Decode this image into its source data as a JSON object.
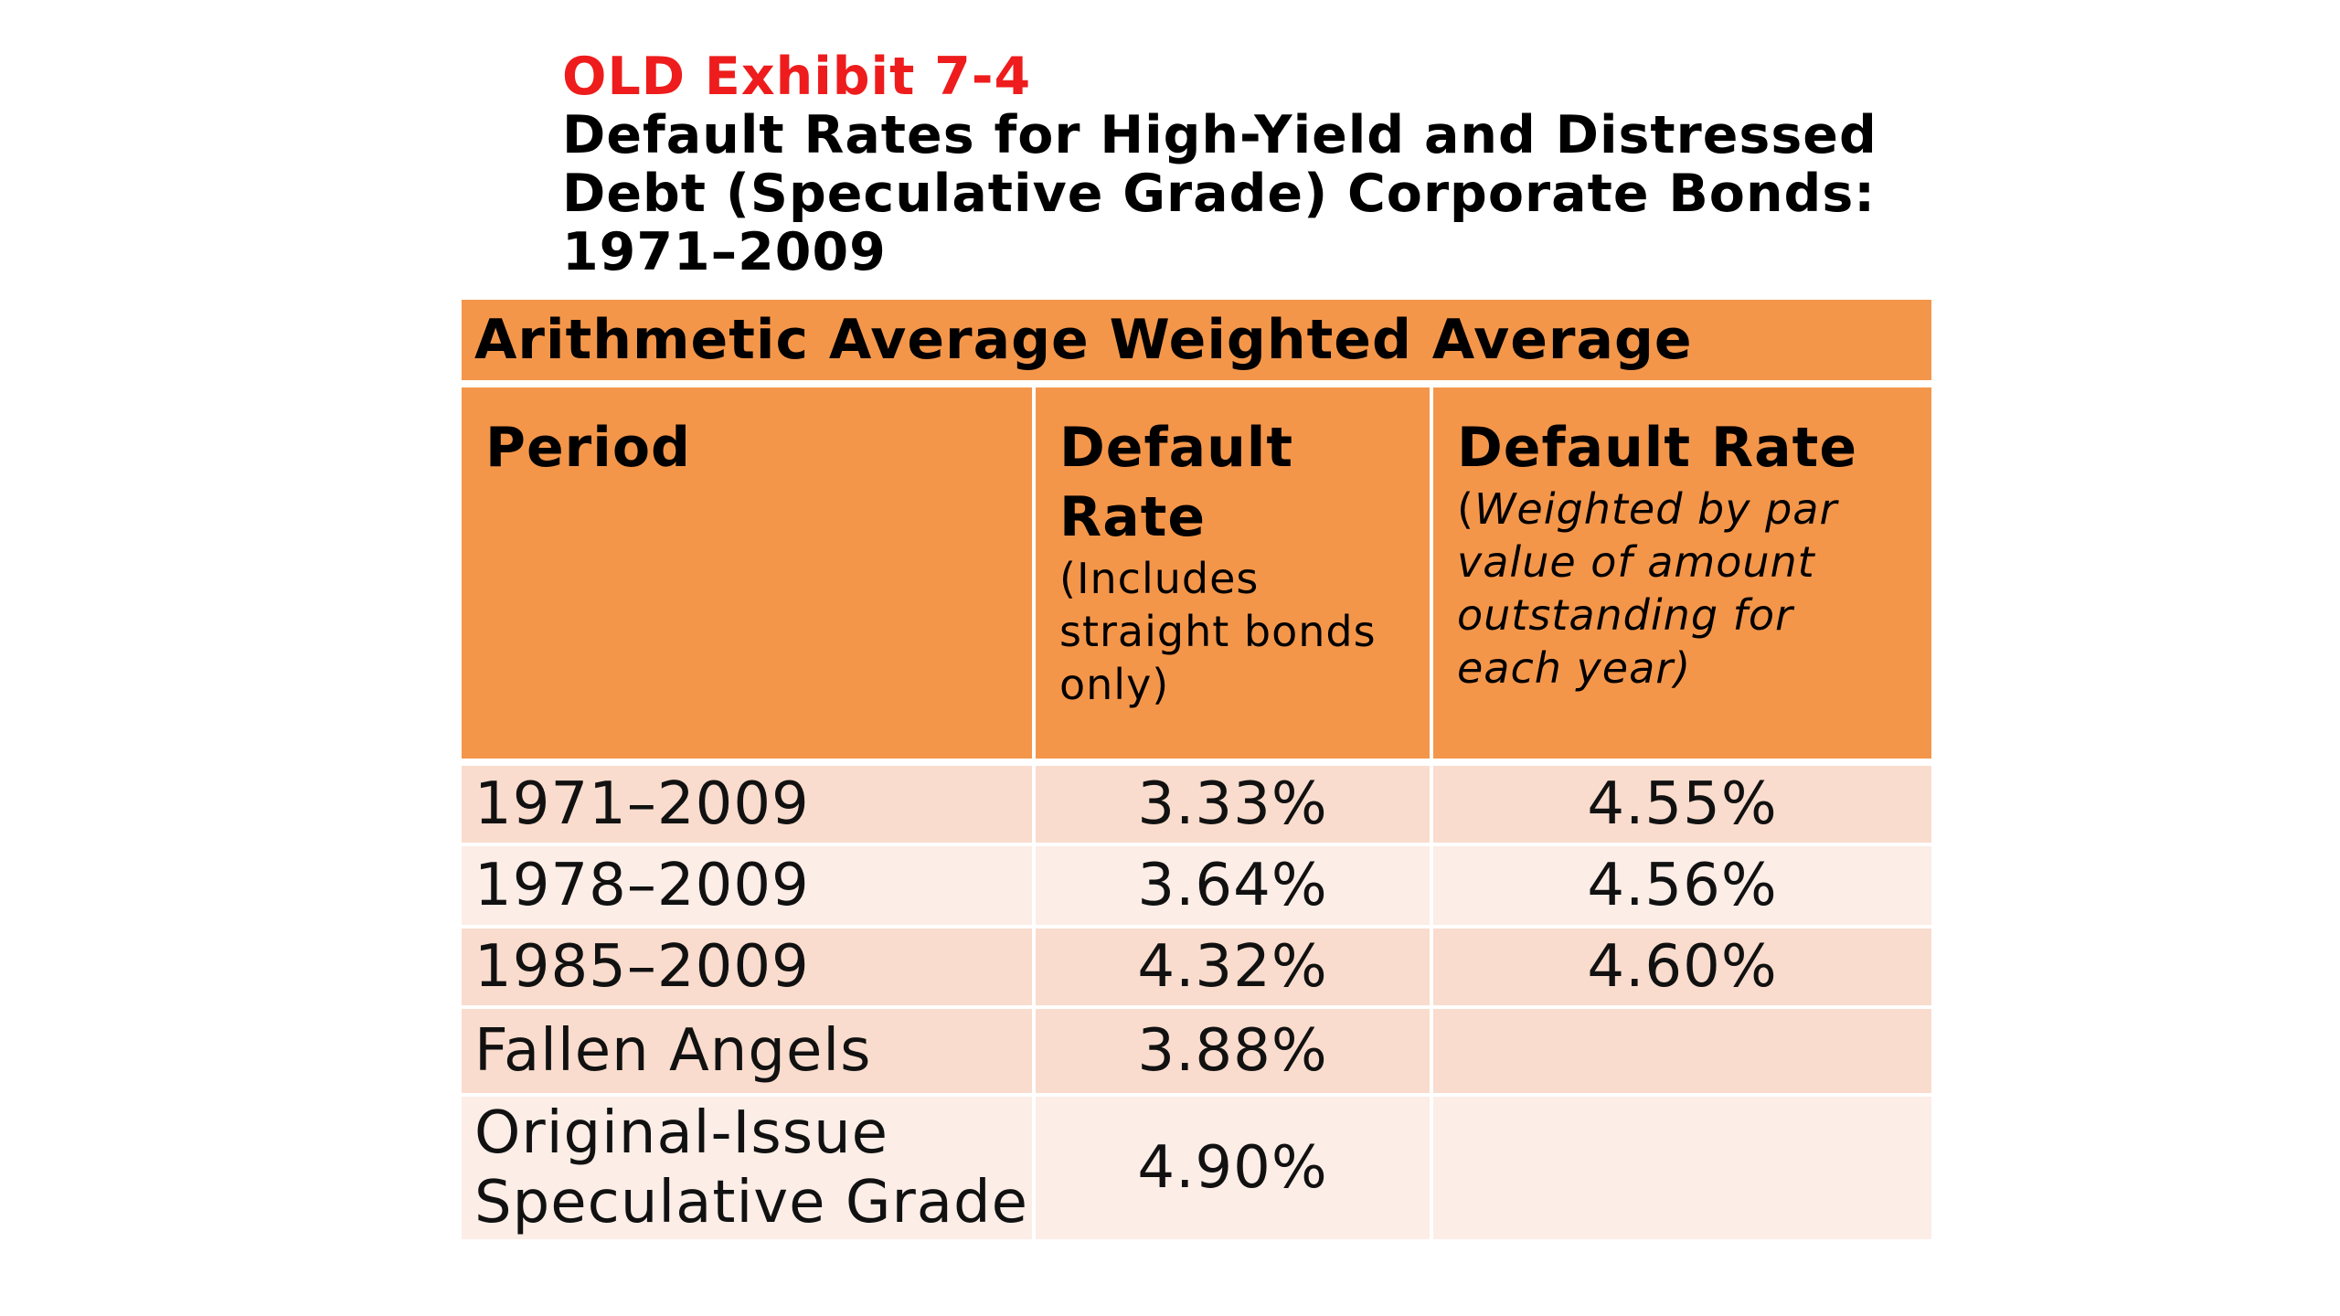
{
  "title": {
    "exhibit_label": "OLD Exhibit 7-4",
    "title_lines": [
      "Default Rates for High-Yield and Distressed",
      "Debt (Speculative Grade) Corporate Bonds:",
      "1971–2009"
    ]
  },
  "table": {
    "band_label": "Arithmetic Average Weighted Average",
    "headers": [
      {
        "title": "Period",
        "note": ""
      },
      {
        "title": "Default Rate",
        "note": "(Includes straight bonds only)"
      },
      {
        "title": "Default Rate",
        "note_open": "(",
        "note": "Weighted by par value of amount outstanding for each year",
        "note_close": ")"
      }
    ],
    "rows": [
      {
        "period": "1971–2009",
        "arithmetic": "3.33%",
        "weighted": "4.55%"
      },
      {
        "period": "1978–2009",
        "arithmetic": "3.64%",
        "weighted": "4.56%"
      },
      {
        "period": "1985–2009",
        "arithmetic": "4.32%",
        "weighted": "4.60%"
      },
      {
        "period": "Fallen Angels",
        "arithmetic": "3.88%",
        "weighted": ""
      },
      {
        "period": "Original-Issue Speculative Grade",
        "arithmetic": "4.90%",
        "weighted": ""
      }
    ]
  },
  "colors": {
    "exhibit_label": "#ee1c1c",
    "header_fill": "#f4964a",
    "row_fill_dark": "#f9dccd",
    "row_fill_light": "#fcede7"
  }
}
